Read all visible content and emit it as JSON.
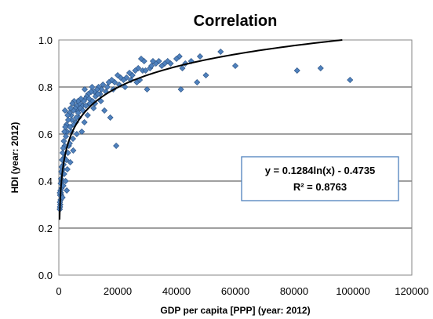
{
  "chart_data": {
    "type": "scatter",
    "title": "Correlation",
    "xlabel": "GDP per capita  [PPP] (year: 2012)",
    "ylabel": "HDI (year: 2012)",
    "xlim": [
      0,
      120000
    ],
    "ylim": [
      0.0,
      1.0
    ],
    "x_ticks": [
      "0",
      "20000",
      "40000",
      "60000",
      "80000",
      "100000",
      "120000"
    ],
    "y_ticks": [
      "0.0",
      "0.2",
      "0.4",
      "0.6",
      "0.8",
      "1.0"
    ],
    "grid": "horizontal",
    "marker_color": "#4f81bd",
    "trendline": {
      "type": "logarithmic",
      "a": 0.1284,
      "b": -0.4735,
      "equation_label": "y = 0.1284ln(x) - 0.4735",
      "r2_label": "R² = 0.8763"
    },
    "points": [
      [
        99000,
        0.83
      ],
      [
        89000,
        0.88
      ],
      [
        81000,
        0.87
      ],
      [
        60000,
        0.89
      ],
      [
        55000,
        0.95
      ],
      [
        50000,
        0.85
      ],
      [
        48000,
        0.93
      ],
      [
        47000,
        0.82
      ],
      [
        45000,
        0.91
      ],
      [
        43000,
        0.9
      ],
      [
        41000,
        0.93
      ],
      [
        41500,
        0.79
      ],
      [
        42000,
        0.88
      ],
      [
        40000,
        0.92
      ],
      [
        38000,
        0.9
      ],
      [
        37000,
        0.91
      ],
      [
        36000,
        0.9
      ],
      [
        35000,
        0.89
      ],
      [
        34000,
        0.91
      ],
      [
        33000,
        0.9
      ],
      [
        32000,
        0.91
      ],
      [
        31000,
        0.88
      ],
      [
        30000,
        0.79
      ],
      [
        29000,
        0.91
      ],
      [
        28500,
        0.87
      ],
      [
        28000,
        0.92
      ],
      [
        27000,
        0.88
      ],
      [
        27500,
        0.83
      ],
      [
        26000,
        0.87
      ],
      [
        25000,
        0.85
      ],
      [
        24000,
        0.86
      ],
      [
        23000,
        0.84
      ],
      [
        22000,
        0.83
      ],
      [
        21000,
        0.84
      ],
      [
        20000,
        0.85
      ],
      [
        19000,
        0.82
      ],
      [
        19500,
        0.55
      ],
      [
        18500,
        0.79
      ],
      [
        18000,
        0.83
      ],
      [
        17000,
        0.82
      ],
      [
        17500,
        0.67
      ],
      [
        16500,
        0.8
      ],
      [
        16000,
        0.78
      ],
      [
        15500,
        0.7
      ],
      [
        15000,
        0.81
      ],
      [
        14500,
        0.79
      ],
      [
        14000,
        0.77
      ],
      [
        13500,
        0.8
      ],
      [
        13000,
        0.79
      ],
      [
        12500,
        0.76
      ],
      [
        12000,
        0.78
      ],
      [
        11500,
        0.74
      ],
      [
        11000,
        0.78
      ],
      [
        10500,
        0.73
      ],
      [
        10000,
        0.77
      ],
      [
        9800,
        0.68
      ],
      [
        9500,
        0.76
      ],
      [
        9000,
        0.75
      ],
      [
        8800,
        0.79
      ],
      [
        8500,
        0.74
      ],
      [
        8000,
        0.72
      ],
      [
        7800,
        0.61
      ],
      [
        7500,
        0.75
      ],
      [
        7000,
        0.73
      ],
      [
        6800,
        0.67
      ],
      [
        6500,
        0.74
      ],
      [
        6200,
        0.7
      ],
      [
        6000,
        0.72
      ],
      [
        5800,
        0.65
      ],
      [
        5500,
        0.71
      ],
      [
        5200,
        0.74
      ],
      [
        5000,
        0.7
      ],
      [
        4800,
        0.58
      ],
      [
        4600,
        0.73
      ],
      [
        4400,
        0.66
      ],
      [
        4200,
        0.68
      ],
      [
        4000,
        0.71
      ],
      [
        3800,
        0.63
      ],
      [
        3600,
        0.69
      ],
      [
        3400,
        0.55
      ],
      [
        3200,
        0.66
      ],
      [
        3000,
        0.68
      ],
      [
        2800,
        0.61
      ],
      [
        2600,
        0.64
      ],
      [
        2400,
        0.59
      ],
      [
        2200,
        0.63
      ],
      [
        2100,
        0.7
      ],
      [
        2000,
        0.55
      ],
      [
        1900,
        0.61
      ],
      [
        1800,
        0.5
      ],
      [
        1700,
        0.57
      ],
      [
        1600,
        0.47
      ],
      [
        1500,
        0.54
      ],
      [
        1400,
        0.45
      ],
      [
        1300,
        0.52
      ],
      [
        1200,
        0.43
      ],
      [
        1100,
        0.49
      ],
      [
        1000,
        0.4
      ],
      [
        950,
        0.46
      ],
      [
        900,
        0.37
      ],
      [
        850,
        0.44
      ],
      [
        800,
        0.34
      ],
      [
        750,
        0.41
      ],
      [
        700,
        0.35
      ],
      [
        650,
        0.39
      ],
      [
        600,
        0.32
      ],
      [
        550,
        0.36
      ],
      [
        500,
        0.3
      ],
      [
        450,
        0.34
      ],
      [
        400,
        0.29
      ],
      [
        380,
        0.31
      ],
      [
        350,
        0.35
      ],
      [
        320,
        0.28
      ],
      [
        1800,
        0.43
      ],
      [
        2500,
        0.49
      ],
      [
        3100,
        0.52
      ],
      [
        3700,
        0.56
      ],
      [
        4300,
        0.61
      ],
      [
        5100,
        0.64
      ],
      [
        5900,
        0.67
      ],
      [
        6600,
        0.69
      ],
      [
        7300,
        0.71
      ],
      [
        8200,
        0.7
      ],
      [
        9200,
        0.72
      ],
      [
        10300,
        0.75
      ],
      [
        11300,
        0.8
      ],
      [
        12300,
        0.73
      ],
      [
        13300,
        0.77
      ],
      [
        14300,
        0.74
      ],
      [
        20500,
        0.81
      ],
      [
        22500,
        0.8
      ],
      [
        24500,
        0.83
      ],
      [
        26500,
        0.82
      ],
      [
        29500,
        0.87
      ],
      [
        31500,
        0.89
      ],
      [
        1550,
        0.38
      ],
      [
        2300,
        0.4
      ],
      [
        2900,
        0.45
      ],
      [
        1250,
        0.33
      ],
      [
        6100,
        0.6
      ],
      [
        3900,
        0.48
      ],
      [
        4900,
        0.53
      ],
      [
        8700,
        0.65
      ],
      [
        11800,
        0.71
      ],
      [
        2700,
        0.36
      ]
    ]
  }
}
